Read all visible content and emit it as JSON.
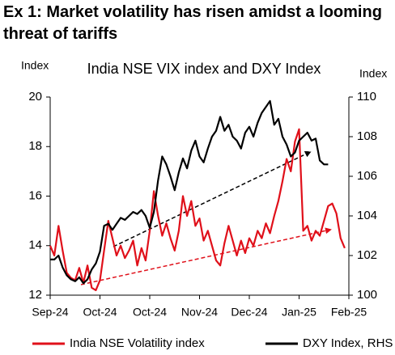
{
  "chart_data": {
    "type": "line",
    "title": "Ex 1: Market volatility has risen amidst a looming threat of tariffs",
    "subtitle": "India NSE VIX index and DXY Index",
    "y_label": "Index",
    "y2_label": "Index",
    "categories": [
      "Sep-24",
      null,
      null,
      null,
      null,
      null,
      null,
      null,
      null,
      null,
      null,
      null,
      "Oct-24",
      null,
      null,
      null,
      null,
      null,
      null,
      null,
      null,
      null,
      null,
      null,
      "Oct-24",
      null,
      null,
      null,
      null,
      null,
      null,
      null,
      null,
      null,
      null,
      null,
      "Nov-24",
      null,
      null,
      null,
      null,
      null,
      null,
      null,
      null,
      null,
      null,
      null,
      "Dec-24",
      null,
      null,
      null,
      null,
      null,
      null,
      null,
      null,
      null,
      null,
      null,
      "Jan-25",
      null,
      null,
      null,
      null,
      null,
      null,
      null,
      null,
      null,
      null,
      null,
      "Feb-25"
    ],
    "series": [
      {
        "name": "India NSE Volatility index",
        "color": "#e0101a",
        "axis": "y",
        "values": [
          14.0,
          13.6,
          14.8,
          13.8,
          12.9,
          12.7,
          12.6,
          13.1,
          12.5,
          13.2,
          12.3,
          12.2,
          12.6,
          13.8,
          15.0,
          14.3,
          13.6,
          14.0,
          13.5,
          13.8,
          14.2,
          13.2,
          13.9,
          13.4,
          14.6,
          16.2,
          15.2,
          14.4,
          14.9,
          14.3,
          13.8,
          14.6,
          16.0,
          15.2,
          15.8,
          14.8,
          15.1,
          14.2,
          14.6,
          14.0,
          13.4,
          13.2,
          14.1,
          14.8,
          14.2,
          13.6,
          14.2,
          13.7,
          14.3,
          14.0,
          14.6,
          14.3,
          14.9,
          14.5,
          15.2,
          15.8,
          16.6,
          17.5,
          17.0,
          18.2,
          18.7,
          14.6,
          14.8,
          14.2,
          14.6,
          14.4,
          15.0,
          15.6,
          15.7,
          15.3,
          14.3,
          13.9,
          null
        ]
      },
      {
        "name": "DXY Index, RHS",
        "color": "#000000",
        "axis": "y2",
        "values": [
          101.8,
          101.8,
          102.0,
          101.4,
          101.0,
          100.8,
          100.7,
          100.9,
          100.6,
          100.8,
          101.3,
          101.6,
          102.2,
          103.5,
          103.6,
          103.3,
          103.6,
          103.9,
          103.8,
          104.0,
          104.2,
          104.1,
          104.3,
          104.0,
          103.4,
          104.2,
          105.8,
          107.0,
          106.6,
          106.0,
          105.3,
          106.2,
          106.9,
          106.4,
          107.3,
          107.8,
          107.0,
          106.7,
          107.4,
          108.0,
          108.3,
          109.0,
          108.3,
          108.6,
          108.0,
          107.8,
          107.4,
          108.2,
          108.5,
          108.0,
          108.7,
          109.2,
          109.5,
          109.8,
          108.6,
          108.9,
          108.0,
          107.6,
          107.0,
          107.2,
          107.8,
          108.0,
          108.2,
          107.8,
          107.9,
          106.8,
          106.6,
          106.6,
          null,
          null,
          null,
          null,
          null
        ]
      }
    ],
    "ylim": [
      12,
      20
    ],
    "yticks": [
      12,
      14,
      16,
      18,
      20
    ],
    "y2lim": [
      100,
      110
    ],
    "y2ticks": [
      100,
      102,
      104,
      106,
      108,
      110
    ],
    "grid": false,
    "legend": "bottom"
  }
}
